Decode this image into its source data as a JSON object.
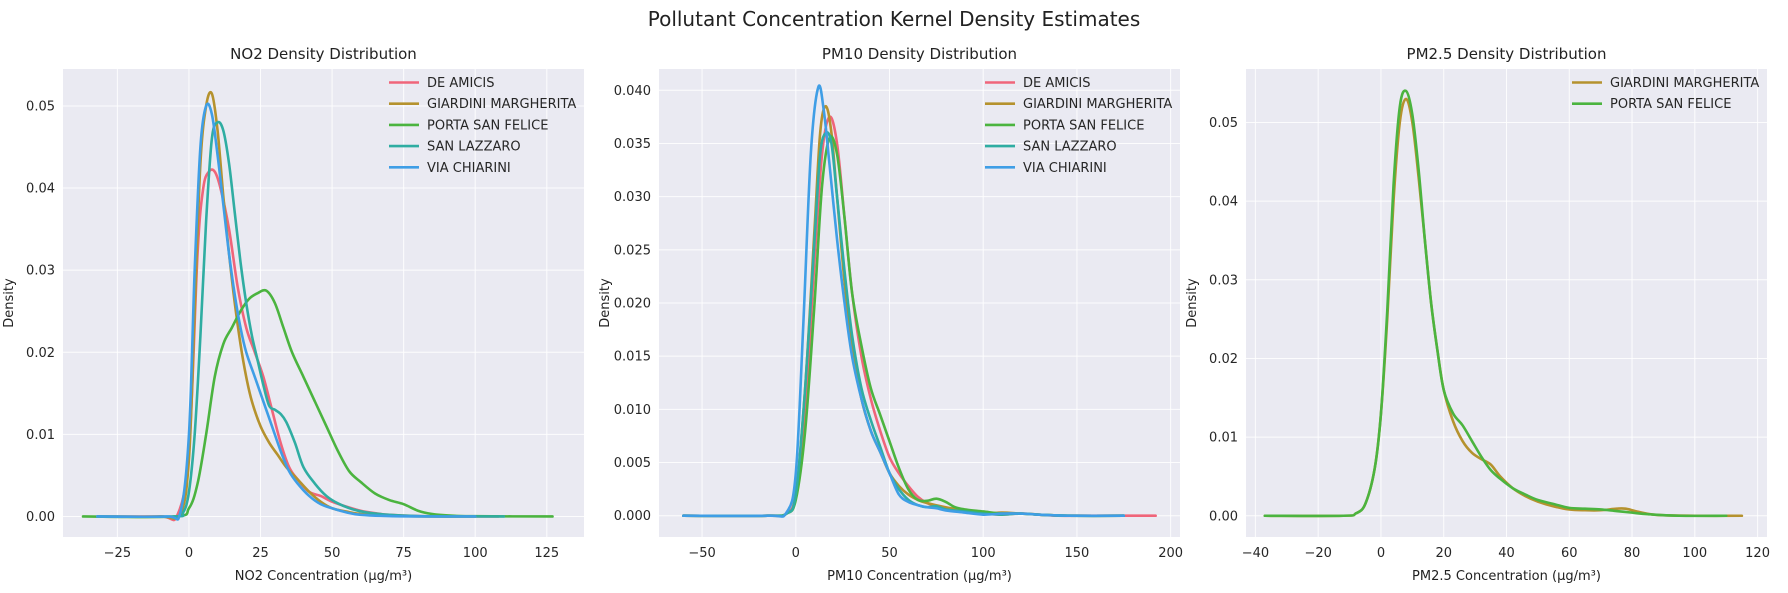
{
  "figure_title": "Pollutant Concentration Kernel Density Estimates",
  "colors": {
    "DE AMICIS": "#f0657a",
    "GIARDINI MARGHERITA": "#b5922e",
    "PORTA SAN FELICE": "#4bb43f",
    "SAN LAZZARO": "#2fada2",
    "VIA CHIARINI": "#3f9ee6",
    "plot_background": "#eaeaf2"
  },
  "chart_data": [
    {
      "type": "line",
      "title": "NO2 Density Distribution",
      "xlabel": "NO2 Concentration (µg/m³)",
      "ylabel": "Density",
      "xlim": [
        -44,
        138
      ],
      "ylim": [
        -0.0025,
        0.0545
      ],
      "xticks": [
        -25,
        0,
        25,
        50,
        75,
        100,
        125
      ],
      "yticks": [
        0.0,
        0.01,
        0.02,
        0.03,
        0.04,
        0.05
      ],
      "ytick_labels": [
        "0.00",
        "0.01",
        "0.02",
        "0.03",
        "0.04",
        "0.05"
      ],
      "legend": [
        "DE AMICIS",
        "GIARDINI MARGHERITA",
        "PORTA SAN FELICE",
        "SAN LAZZARO",
        "VIA CHIARINI"
      ],
      "series": [
        {
          "name": "DE AMICIS",
          "x": [
            -32,
            -10,
            -4,
            0,
            3,
            5,
            7,
            9,
            11,
            14,
            17,
            20,
            23,
            26,
            29,
            32,
            35,
            38,
            42,
            46,
            50,
            55,
            60,
            65,
            70,
            80,
            95,
            108
          ],
          "y": [
            0,
            0,
            0.0002,
            0.008,
            0.032,
            0.04,
            0.042,
            0.042,
            0.04,
            0.035,
            0.028,
            0.023,
            0.02,
            0.017,
            0.013,
            0.009,
            0.006,
            0.0045,
            0.003,
            0.0025,
            0.0018,
            0.0012,
            0.0007,
            0.0004,
            0.0002,
            5e-05,
            0,
            0
          ]
        },
        {
          "name": "GIARDINI MARGHERITA",
          "x": [
            -32,
            -10,
            -3,
            0,
            2,
            4,
            6,
            8,
            10,
            12,
            14,
            16,
            18,
            20,
            22,
            25,
            28,
            31,
            34,
            38,
            42,
            46,
            50,
            55,
            60,
            70,
            85,
            100
          ],
          "y": [
            0,
            0,
            0.0003,
            0.007,
            0.025,
            0.043,
            0.05,
            0.0515,
            0.047,
            0.039,
            0.032,
            0.026,
            0.021,
            0.017,
            0.014,
            0.011,
            0.009,
            0.0075,
            0.006,
            0.0045,
            0.003,
            0.0018,
            0.001,
            0.0006,
            0.0003,
            0.0001,
            0,
            0
          ]
        },
        {
          "name": "PORTA SAN FELICE",
          "x": [
            -37,
            -5,
            0,
            3,
            6,
            9,
            12,
            15,
            18,
            21,
            24,
            27,
            30,
            33,
            36,
            40,
            44,
            48,
            52,
            56,
            60,
            65,
            70,
            75,
            80,
            85,
            92,
            100,
            127
          ],
          "y": [
            0,
            0,
            0.001,
            0.004,
            0.01,
            0.017,
            0.021,
            0.023,
            0.025,
            0.0265,
            0.0272,
            0.0275,
            0.026,
            0.023,
            0.02,
            0.017,
            0.014,
            0.011,
            0.008,
            0.0055,
            0.0042,
            0.0028,
            0.002,
            0.0015,
            0.0007,
            0.0003,
            0.0001,
            3e-05,
            0
          ]
        },
        {
          "name": "SAN LAZZARO",
          "x": [
            -32,
            -5,
            -2,
            0,
            2,
            4,
            6,
            8,
            10,
            12,
            14,
            16,
            18,
            20,
            22,
            24,
            26,
            28,
            30,
            32,
            34,
            37,
            40,
            44,
            48,
            52,
            57,
            62,
            70,
            80,
            95,
            110
          ],
          "y": [
            0,
            0,
            0.0005,
            0.003,
            0.01,
            0.022,
            0.036,
            0.046,
            0.048,
            0.047,
            0.043,
            0.037,
            0.031,
            0.026,
            0.022,
            0.019,
            0.016,
            0.0135,
            0.013,
            0.0125,
            0.0115,
            0.009,
            0.006,
            0.004,
            0.0025,
            0.0016,
            0.0009,
            0.0005,
            0.0002,
            5e-05,
            0,
            0
          ]
        },
        {
          "name": "VIA CHIARINI",
          "x": [
            -32,
            -8,
            -3,
            0,
            2,
            4,
            6,
            8,
            10,
            12,
            14,
            16,
            18,
            20,
            23,
            26,
            29,
            32,
            35,
            38,
            42,
            46,
            50,
            55,
            60,
            70,
            85,
            100
          ],
          "y": [
            0,
            0,
            0.0005,
            0.01,
            0.03,
            0.045,
            0.05,
            0.049,
            0.044,
            0.038,
            0.032,
            0.027,
            0.023,
            0.02,
            0.017,
            0.014,
            0.011,
            0.008,
            0.0055,
            0.004,
            0.0025,
            0.0015,
            0.001,
            0.0005,
            0.0002,
            5e-05,
            0,
            0
          ]
        }
      ]
    },
    {
      "type": "line",
      "title": "PM10 Density Distribution",
      "xlabel": "PM10 Concentration (µg/m³)",
      "ylabel": "Density",
      "xlim": [
        -73,
        205
      ],
      "ylim": [
        -0.002,
        0.042
      ],
      "xticks": [
        -50,
        0,
        50,
        100,
        150,
        200
      ],
      "yticks": [
        0.0,
        0.005,
        0.01,
        0.015,
        0.02,
        0.025,
        0.03,
        0.035,
        0.04
      ],
      "ytick_labels": [
        "0.000",
        "0.005",
        "0.010",
        "0.015",
        "0.020",
        "0.025",
        "0.030",
        "0.035",
        "0.040"
      ],
      "legend": [
        "DE AMICIS",
        "GIARDINI MARGHERITA",
        "PORTA SAN FELICE",
        "SAN LAZZARO",
        "VIA CHIARINI"
      ],
      "series": [
        {
          "name": "DE AMICIS",
          "x": [
            -60,
            -15,
            -5,
            0,
            5,
            10,
            14,
            18,
            22,
            26,
            30,
            35,
            40,
            45,
            50,
            55,
            60,
            65,
            70,
            75,
            80,
            90,
            100,
            110,
            120,
            130,
            140,
            150,
            170,
            192
          ],
          "y": [
            0,
            0,
            0.0002,
            0.002,
            0.01,
            0.024,
            0.034,
            0.0375,
            0.035,
            0.028,
            0.021,
            0.015,
            0.011,
            0.008,
            0.0055,
            0.004,
            0.0028,
            0.0018,
            0.0012,
            0.0009,
            0.0007,
            0.0004,
            0.0002,
            0.0001,
            0.0002,
            0.0001,
            0,
            0,
            0,
            0
          ]
        },
        {
          "name": "GIARDINI MARGHERITA",
          "x": [
            -60,
            -15,
            -5,
            0,
            5,
            10,
            13,
            16,
            19,
            22,
            26,
            30,
            35,
            40,
            45,
            50,
            55,
            60,
            65,
            70,
            80,
            90,
            100,
            110,
            120,
            130,
            145,
            175
          ],
          "y": [
            0,
            0,
            0.0002,
            0.002,
            0.012,
            0.027,
            0.036,
            0.0385,
            0.036,
            0.03,
            0.022,
            0.016,
            0.011,
            0.008,
            0.006,
            0.004,
            0.0028,
            0.002,
            0.0015,
            0.0012,
            0.0008,
            0.0005,
            0.0002,
            0.0003,
            0.0002,
            0.0001,
            0,
            0
          ]
        },
        {
          "name": "PORTA SAN FELICE",
          "x": [
            -60,
            -15,
            -5,
            0,
            5,
            10,
            14,
            18,
            22,
            26,
            30,
            35,
            40,
            45,
            50,
            55,
            60,
            65,
            70,
            75,
            80,
            85,
            90,
            100,
            110,
            120,
            130,
            145,
            175
          ],
          "y": [
            0,
            0,
            0.0002,
            0.0015,
            0.008,
            0.02,
            0.031,
            0.0355,
            0.034,
            0.028,
            0.021,
            0.016,
            0.012,
            0.0095,
            0.007,
            0.0045,
            0.0025,
            0.0015,
            0.0014,
            0.0016,
            0.0013,
            0.0008,
            0.0006,
            0.0004,
            0.0002,
            0.0002,
            0.0001,
            0,
            0
          ]
        },
        {
          "name": "SAN LAZZARO",
          "x": [
            -60,
            -15,
            -5,
            0,
            5,
            10,
            13,
            16,
            19,
            22,
            26,
            30,
            35,
            40,
            45,
            50,
            55,
            60,
            65,
            70,
            75,
            80,
            90,
            100,
            110,
            120,
            130,
            145,
            175
          ],
          "y": [
            0,
            0,
            0.0002,
            0.002,
            0.012,
            0.026,
            0.034,
            0.036,
            0.035,
            0.03,
            0.023,
            0.017,
            0.012,
            0.009,
            0.0065,
            0.004,
            0.0025,
            0.0015,
            0.001,
            0.0008,
            0.0009,
            0.0006,
            0.0004,
            0.0002,
            0.0001,
            0.0002,
            0.0001,
            0,
            0
          ]
        },
        {
          "name": "VIA CHIARINI",
          "x": [
            -60,
            -15,
            -5,
            0,
            4,
            8,
            12,
            15,
            18,
            22,
            26,
            30,
            35,
            40,
            45,
            50,
            55,
            60,
            65,
            70,
            75,
            80,
            90,
            100,
            110,
            120,
            130,
            145,
            175
          ],
          "y": [
            0,
            0,
            0.0003,
            0.004,
            0.018,
            0.034,
            0.0403,
            0.038,
            0.033,
            0.026,
            0.02,
            0.015,
            0.011,
            0.008,
            0.006,
            0.004,
            0.002,
            0.0013,
            0.001,
            0.0008,
            0.0007,
            0.0005,
            0.0003,
            0.0001,
            0.0002,
            0.0002,
            0.0001,
            0,
            0
          ]
        }
      ]
    },
    {
      "type": "line",
      "title": "PM2.5 Density Distribution",
      "xlabel": "PM2.5 Concentration (µg/m³)",
      "ylabel": "Density",
      "xlim": [
        -43,
        123
      ],
      "ylim": [
        -0.0027,
        0.0568
      ],
      "xticks": [
        -40,
        -20,
        0,
        20,
        40,
        60,
        80,
        100,
        120
      ],
      "yticks": [
        0.0,
        0.01,
        0.02,
        0.03,
        0.04,
        0.05
      ],
      "ytick_labels": [
        "0.00",
        "0.01",
        "0.02",
        "0.03",
        "0.04",
        "0.05"
      ],
      "legend": [
        "GIARDINI MARGHERITA",
        "PORTA SAN FELICE"
      ],
      "series": [
        {
          "name": "GIARDINI MARGHERITA",
          "x": [
            -37,
            -12,
            -8,
            -5,
            -2,
            0,
            2,
            4,
            6,
            8,
            10,
            12,
            14,
            16,
            18,
            20,
            23,
            26,
            29,
            32,
            35,
            38,
            42,
            46,
            50,
            55,
            60,
            65,
            70,
            75,
            78,
            82,
            88,
            100,
            115
          ],
          "y": [
            0,
            0,
            0.0003,
            0.0015,
            0.006,
            0.013,
            0.025,
            0.04,
            0.05,
            0.053,
            0.05,
            0.043,
            0.035,
            0.027,
            0.021,
            0.016,
            0.012,
            0.0095,
            0.008,
            0.0072,
            0.0065,
            0.005,
            0.0035,
            0.0025,
            0.0018,
            0.0012,
            0.0008,
            0.0007,
            0.0007,
            0.0009,
            0.0009,
            0.0005,
            0.0001,
            0,
            0
          ]
        },
        {
          "name": "PORTA SAN FELICE",
          "x": [
            -37,
            -12,
            -8,
            -5,
            -2,
            0,
            2,
            4,
            6,
            8,
            10,
            12,
            14,
            16,
            18,
            20,
            23,
            26,
            29,
            32,
            35,
            38,
            42,
            46,
            50,
            55,
            60,
            65,
            70,
            75,
            80,
            85,
            95,
            110
          ],
          "y": [
            0,
            0,
            0.0003,
            0.0015,
            0.006,
            0.013,
            0.026,
            0.042,
            0.052,
            0.054,
            0.051,
            0.044,
            0.035,
            0.027,
            0.021,
            0.016,
            0.013,
            0.0115,
            0.0095,
            0.0075,
            0.0058,
            0.0047,
            0.0035,
            0.0027,
            0.002,
            0.0015,
            0.001,
            0.0009,
            0.0008,
            0.0006,
            0.0004,
            0.0002,
            0,
            0
          ]
        }
      ]
    }
  ]
}
